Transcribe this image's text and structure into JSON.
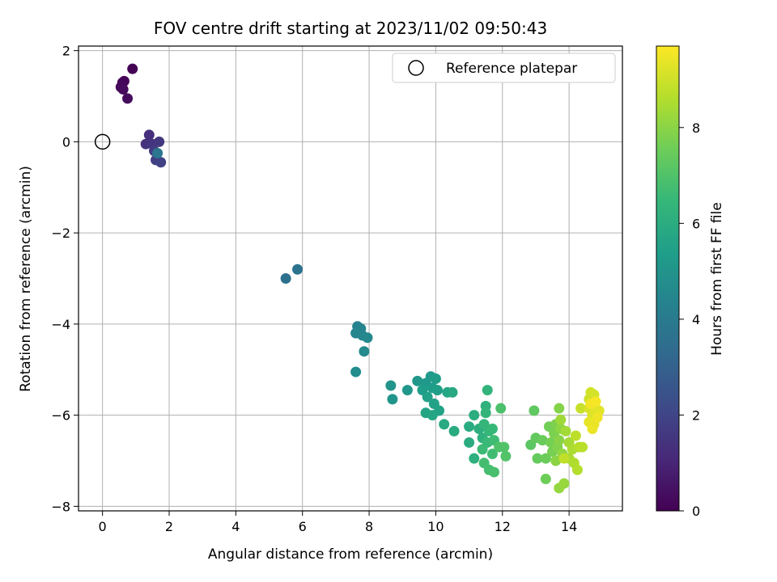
{
  "chart_data": {
    "type": "scatter",
    "title": "FOV centre drift starting at 2023/11/02 09:50:43",
    "xlabel": "Angular distance from reference (arcmin)",
    "ylabel": "Rotation from reference (arcmin)",
    "xlim": [
      -0.72,
      15.6
    ],
    "ylim": [
      -8.1,
      2.1
    ],
    "xticks": [
      0,
      2,
      4,
      6,
      8,
      10,
      12,
      14
    ],
    "yticks": [
      2,
      0,
      -2,
      -4,
      -6,
      -8
    ],
    "xtick_labels": [
      "0",
      "2",
      "4",
      "6",
      "8",
      "10",
      "12",
      "14"
    ],
    "ytick_labels": [
      "2",
      "0",
      "−2",
      "−4",
      "−6",
      "−8"
    ],
    "grid": true,
    "legend": {
      "placement": "top-right",
      "entries": [
        "Reference platepar"
      ]
    },
    "reference_point": {
      "name": "Reference platepar",
      "x": 0,
      "y": 0
    },
    "colorbar": {
      "label": "Hours from first FF file",
      "colormap": "viridis",
      "range": [
        0,
        9.7
      ],
      "ticks": [
        0,
        2,
        4,
        6,
        8
      ],
      "tick_labels": [
        "0",
        "2",
        "4",
        "6",
        "8"
      ]
    },
    "points": [
      [
        0.9,
        1.6,
        0.0
      ],
      [
        0.6,
        1.3,
        0.1
      ],
      [
        0.65,
        1.33,
        0.15
      ],
      [
        0.55,
        1.2,
        0.2
      ],
      [
        0.62,
        1.15,
        0.25
      ],
      [
        0.75,
        0.95,
        0.3
      ],
      [
        1.4,
        0.15,
        1.3
      ],
      [
        1.3,
        -0.05,
        1.4
      ],
      [
        1.5,
        -0.05,
        1.5
      ],
      [
        1.7,
        0.0,
        1.6
      ],
      [
        1.55,
        -0.2,
        1.7
      ],
      [
        1.6,
        -0.4,
        1.8
      ],
      [
        1.75,
        -0.45,
        1.9
      ],
      [
        1.65,
        -0.25,
        3.8
      ],
      [
        5.5,
        -3.0,
        3.6
      ],
      [
        5.85,
        -2.8,
        3.7
      ],
      [
        7.65,
        -4.05,
        4.3
      ],
      [
        7.75,
        -4.1,
        4.4
      ],
      [
        7.6,
        -4.2,
        4.45
      ],
      [
        7.8,
        -4.25,
        4.5
      ],
      [
        7.95,
        -4.3,
        4.55
      ],
      [
        7.85,
        -4.6,
        4.6
      ],
      [
        7.6,
        -5.05,
        4.7
      ],
      [
        8.65,
        -5.35,
        5.0
      ],
      [
        8.7,
        -5.65,
        5.05
      ],
      [
        9.15,
        -5.45,
        5.1
      ],
      [
        9.45,
        -5.25,
        5.15
      ],
      [
        9.7,
        -5.3,
        5.2
      ],
      [
        9.85,
        -5.15,
        5.25
      ],
      [
        10.0,
        -5.2,
        5.3
      ],
      [
        9.9,
        -5.4,
        5.35
      ],
      [
        9.6,
        -5.45,
        5.4
      ],
      [
        10.05,
        -5.45,
        5.45
      ],
      [
        9.75,
        -5.6,
        5.5
      ],
      [
        9.95,
        -5.75,
        5.55
      ],
      [
        10.1,
        -5.9,
        5.6
      ],
      [
        9.7,
        -5.95,
        5.65
      ],
      [
        9.9,
        -6.0,
        5.7
      ],
      [
        10.35,
        -5.5,
        5.75
      ],
      [
        10.5,
        -5.5,
        5.8
      ],
      [
        10.25,
        -6.2,
        5.85
      ],
      [
        10.55,
        -6.35,
        5.9
      ],
      [
        11.0,
        -6.25,
        5.95
      ],
      [
        11.0,
        -6.6,
        6.0
      ],
      [
        11.15,
        -6.0,
        6.05
      ],
      [
        11.3,
        -6.3,
        6.1
      ],
      [
        11.15,
        -6.95,
        6.15
      ],
      [
        11.4,
        -6.5,
        6.2
      ],
      [
        11.5,
        -5.8,
        6.25
      ],
      [
        11.55,
        -5.45,
        6.3
      ],
      [
        11.5,
        -5.95,
        6.35
      ],
      [
        11.45,
        -6.2,
        6.4
      ],
      [
        11.6,
        -6.35,
        6.45
      ],
      [
        11.7,
        -6.3,
        6.5
      ],
      [
        11.55,
        -6.6,
        6.55
      ],
      [
        11.4,
        -6.75,
        6.6
      ],
      [
        11.75,
        -6.55,
        6.65
      ],
      [
        11.7,
        -6.85,
        6.7
      ],
      [
        11.45,
        -7.05,
        6.75
      ],
      [
        11.6,
        -7.2,
        6.8
      ],
      [
        11.75,
        -7.25,
        6.85
      ],
      [
        11.95,
        -5.85,
        6.9
      ],
      [
        11.9,
        -6.7,
        6.95
      ],
      [
        12.05,
        -6.7,
        7.0
      ],
      [
        12.1,
        -6.9,
        7.05
      ],
      [
        12.85,
        -6.65,
        7.2
      ],
      [
        12.95,
        -5.9,
        7.3
      ],
      [
        13.0,
        -6.5,
        7.35
      ],
      [
        13.05,
        -6.95,
        7.4
      ],
      [
        13.2,
        -6.55,
        7.45
      ],
      [
        13.3,
        -6.95,
        7.5
      ],
      [
        13.3,
        -7.4,
        7.55
      ],
      [
        13.4,
        -6.25,
        7.6
      ],
      [
        13.45,
        -6.6,
        7.65
      ],
      [
        13.5,
        -6.8,
        7.7
      ],
      [
        13.55,
        -6.4,
        7.75
      ],
      [
        13.6,
        -6.2,
        7.8
      ],
      [
        13.65,
        -6.7,
        7.85
      ],
      [
        13.7,
        -5.85,
        7.9
      ],
      [
        13.7,
        -6.55,
        7.95
      ],
      [
        13.6,
        -7.0,
        8.0
      ],
      [
        13.75,
        -6.3,
        8.05
      ],
      [
        13.8,
        -6.85,
        8.1
      ],
      [
        13.7,
        -7.6,
        8.15
      ],
      [
        13.85,
        -7.5,
        8.2
      ],
      [
        13.75,
        -6.1,
        8.3
      ],
      [
        13.9,
        -6.35,
        8.35
      ],
      [
        14.0,
        -6.6,
        8.4
      ],
      [
        14.0,
        -6.95,
        8.45
      ],
      [
        14.1,
        -6.75,
        8.5
      ],
      [
        14.15,
        -7.05,
        8.55
      ],
      [
        14.25,
        -7.2,
        8.6
      ],
      [
        14.3,
        -6.7,
        8.65
      ],
      [
        14.4,
        -6.7,
        8.7
      ],
      [
        14.2,
        -6.45,
        8.75
      ],
      [
        13.85,
        -6.95,
        8.8
      ],
      [
        14.35,
        -5.85,
        8.9
      ],
      [
        14.6,
        -5.65,
        9.0
      ],
      [
        14.65,
        -5.5,
        9.05
      ],
      [
        14.75,
        -5.55,
        9.1
      ],
      [
        14.6,
        -5.85,
        9.15
      ],
      [
        14.7,
        -6.0,
        9.2
      ],
      [
        14.8,
        -5.9,
        9.25
      ],
      [
        14.9,
        -5.9,
        9.3
      ],
      [
        14.6,
        -6.15,
        9.35
      ],
      [
        14.75,
        -6.2,
        9.4
      ],
      [
        14.7,
        -6.3,
        9.45
      ],
      [
        14.85,
        -6.05,
        9.5
      ],
      [
        14.65,
        -5.75,
        9.55
      ],
      [
        14.8,
        -5.7,
        9.6
      ]
    ]
  }
}
